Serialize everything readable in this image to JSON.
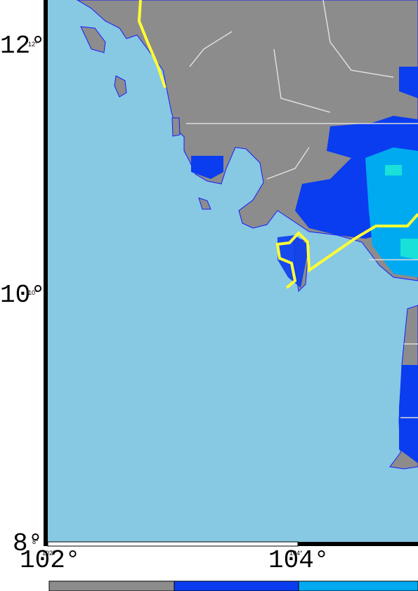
{
  "latitude_labels": [
    {
      "large": "12°",
      "small": "12°"
    },
    {
      "large": "10°",
      "small": "10°"
    },
    {
      "large": "8°",
      "small": "8°"
    }
  ],
  "longitude_labels": [
    {
      "large": "102°",
      "small": "102°"
    },
    {
      "large": "104°",
      "small": "104°"
    }
  ]
}
